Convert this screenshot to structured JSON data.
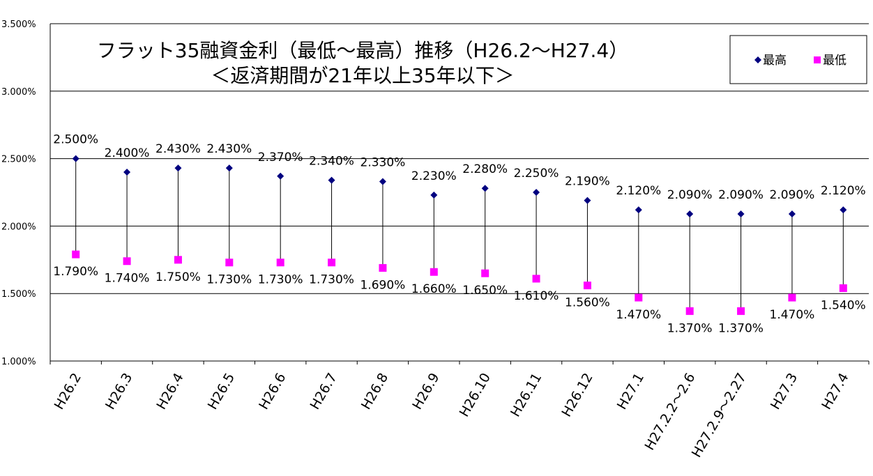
{
  "chart_data": {
    "type": "scatter",
    "title_line1": "フラット35融資金利（最低～最高）推移（H26.2～H27.4）",
    "title_line2": "＜返済期間が21年以上35年以下＞",
    "categories": [
      "H26.2",
      "H26.3",
      "H26.4",
      "H26.5",
      "H26.6",
      "H26.7",
      "H26.8",
      "H26.9",
      "H26.10",
      "H26.11",
      "H26.12",
      "H27.1",
      "H27.2.2～2.6",
      "H27.2.9～2.27",
      "H27.3",
      "H27.4"
    ],
    "series": [
      {
        "name": "最高",
        "marker": "diamond",
        "color": "#000080",
        "values": [
          2.5,
          2.4,
          2.43,
          2.43,
          2.37,
          2.34,
          2.33,
          2.23,
          2.28,
          2.25,
          2.19,
          2.12,
          2.09,
          2.09,
          2.09,
          2.12
        ],
        "labels": [
          "2.500%",
          "2.400%",
          "2.430%",
          "2.430%",
          "2.370%",
          "2.340%",
          "2.330%",
          "2.230%",
          "2.280%",
          "2.250%",
          "2.190%",
          "2.120%",
          "2.090%",
          "2.090%",
          "2.090%",
          "2.120%"
        ]
      },
      {
        "name": "最低",
        "marker": "square",
        "color": "#ff00ff",
        "values": [
          1.79,
          1.74,
          1.75,
          1.73,
          1.73,
          1.73,
          1.69,
          1.66,
          1.65,
          1.61,
          1.56,
          1.47,
          1.37,
          1.37,
          1.47,
          1.54
        ],
        "labels": [
          "1.790%",
          "1.740%",
          "1.750%",
          "1.730%",
          "1.730%",
          "1.730%",
          "1.690%",
          "1.660%",
          "1.650%",
          "1.610%",
          "1.560%",
          "1.470%",
          "1.370%",
          "1.370%",
          "1.470%",
          "1.540%"
        ]
      }
    ],
    "y_ticks": [
      "1.000%",
      "1.500%",
      "2.000%",
      "2.500%",
      "3.000%",
      "3.500%"
    ],
    "ylim": [
      1.0,
      3.5
    ],
    "grid": true,
    "legend_position": "top-right"
  }
}
